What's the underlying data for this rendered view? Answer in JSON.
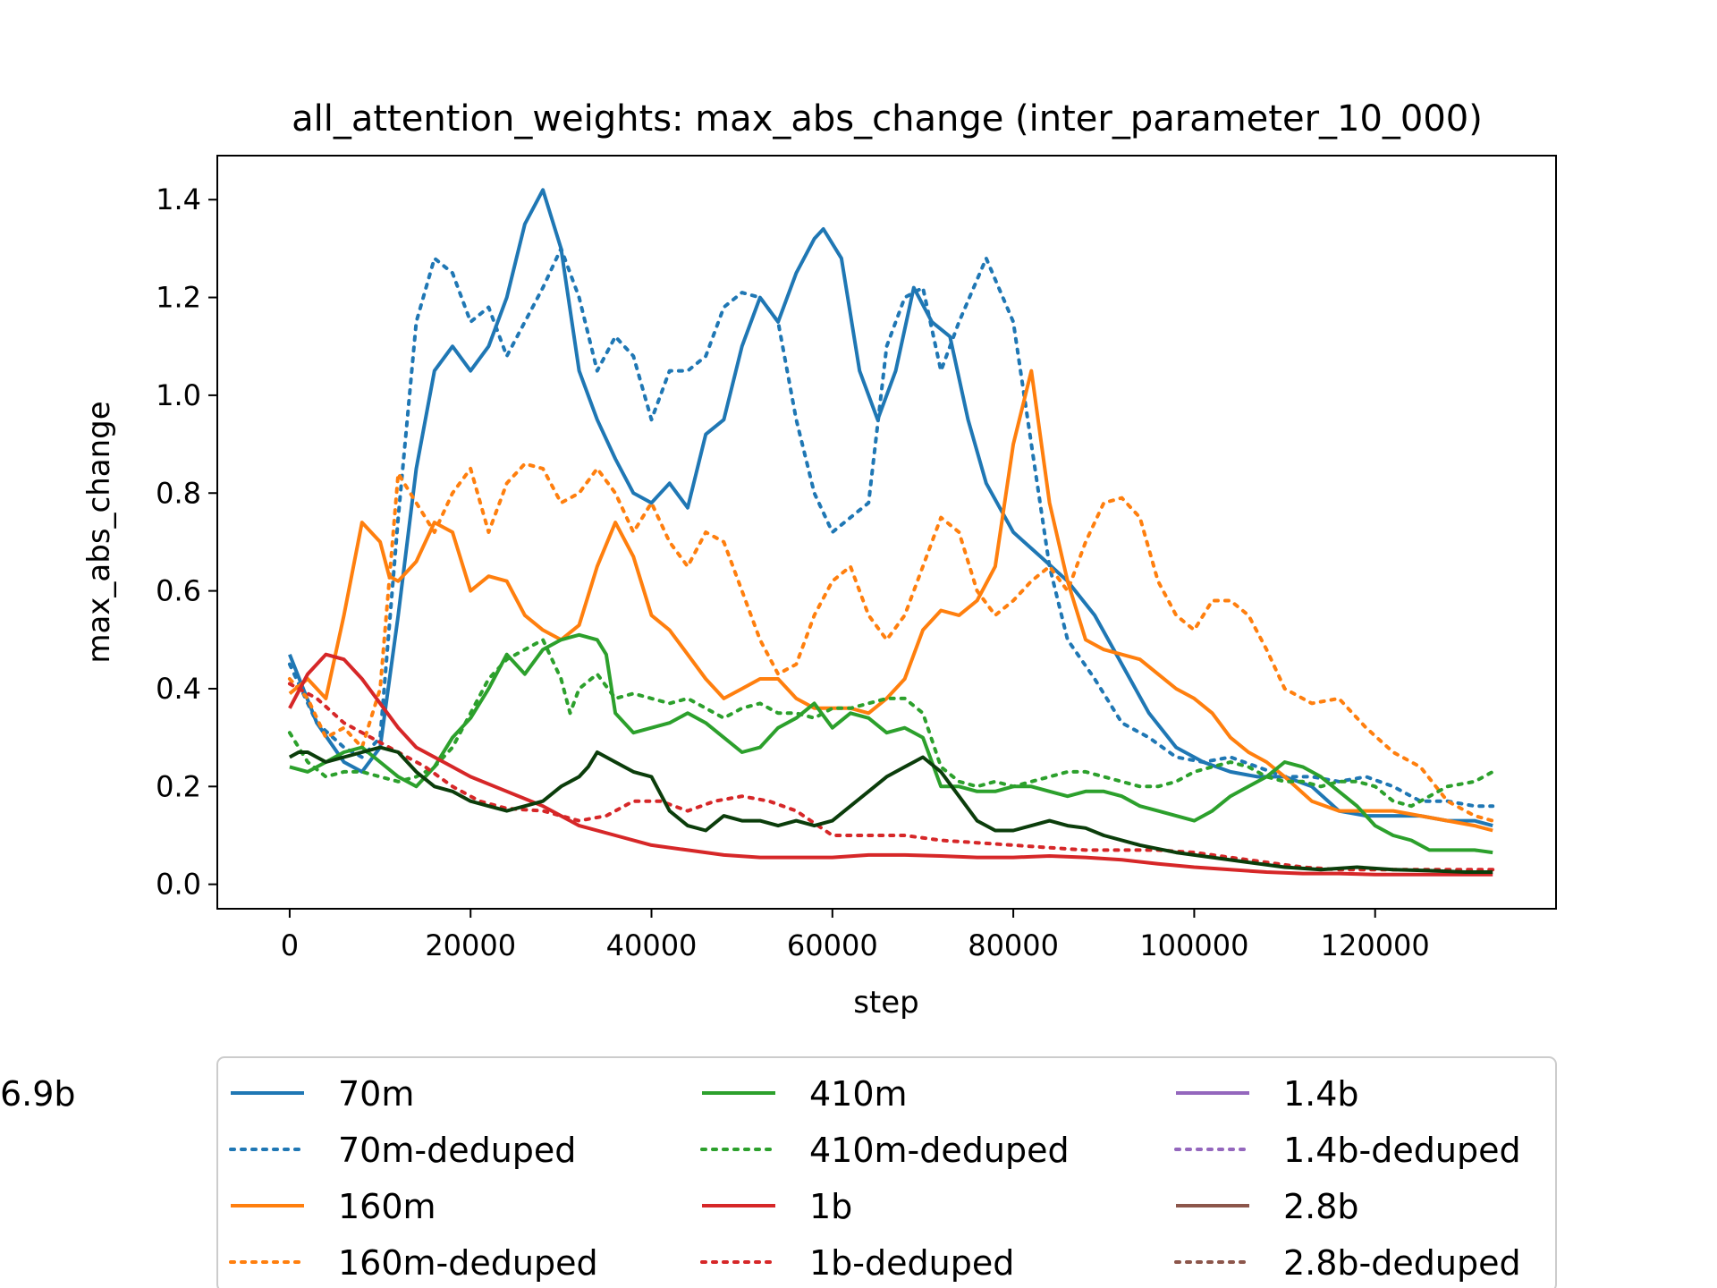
{
  "chart_data": {
    "type": "line",
    "title": "all_attention_weights: max_abs_change (inter_parameter_10_000)",
    "xlabel": "step",
    "ylabel": "max_abs_change",
    "xlim": [
      -8000,
      140000
    ],
    "ylim": [
      -0.05,
      1.49
    ],
    "xticks": [
      0,
      20000,
      40000,
      60000,
      80000,
      100000,
      120000
    ],
    "yticks": [
      0.0,
      0.2,
      0.4,
      0.6,
      0.8,
      1.0,
      1.2,
      1.4
    ],
    "xtick_labels": [
      "0",
      "20000",
      "40000",
      "60000",
      "80000",
      "100000",
      "120000"
    ],
    "ytick_labels": [
      "0.0",
      "0.2",
      "0.4",
      "0.6",
      "0.8",
      "1.0",
      "1.2",
      "1.4"
    ],
    "grid": false,
    "legend_position": "below",
    "series": [
      {
        "name": "70m",
        "color": "#1f77b4",
        "style": "solid",
        "x": [
          0,
          3000,
          6000,
          8000,
          10000,
          12000,
          14000,
          16000,
          18000,
          20000,
          22000,
          24000,
          26000,
          28000,
          30000,
          32000,
          34000,
          36000,
          38000,
          40000,
          42000,
          44000,
          46000,
          48000,
          50000,
          52000,
          54000,
          56000,
          58000,
          59000,
          61000,
          63000,
          65000,
          67000,
          69000,
          71000,
          73000,
          75000,
          77000,
          80000,
          83000,
          86000,
          89000,
          92000,
          95000,
          98000,
          101000,
          104000,
          107000,
          110000,
          113000,
          116000,
          119000,
          122000,
          125000,
          128000,
          131000,
          133000
        ],
        "y": [
          0.47,
          0.33,
          0.25,
          0.23,
          0.28,
          0.55,
          0.85,
          1.05,
          1.1,
          1.05,
          1.1,
          1.2,
          1.35,
          1.42,
          1.3,
          1.05,
          0.95,
          0.87,
          0.8,
          0.78,
          0.82,
          0.77,
          0.92,
          0.95,
          1.1,
          1.2,
          1.15,
          1.25,
          1.32,
          1.34,
          1.28,
          1.05,
          0.95,
          1.05,
          1.22,
          1.15,
          1.12,
          0.95,
          0.82,
          0.72,
          0.67,
          0.62,
          0.55,
          0.45,
          0.35,
          0.28,
          0.25,
          0.23,
          0.22,
          0.22,
          0.2,
          0.15,
          0.14,
          0.14,
          0.14,
          0.13,
          0.13,
          0.12
        ]
      },
      {
        "name": "70m-deduped",
        "color": "#1f77b4",
        "style": "dotted",
        "x": [
          0,
          3000,
          6000,
          8000,
          10000,
          12000,
          14000,
          16000,
          18000,
          20000,
          22000,
          24000,
          26000,
          28000,
          30000,
          32000,
          34000,
          36000,
          38000,
          40000,
          42000,
          44000,
          46000,
          48000,
          50000,
          52000,
          54000,
          56000,
          58000,
          60000,
          62000,
          64000,
          66000,
          68000,
          70000,
          72000,
          74000,
          77000,
          80000,
          82000,
          84000,
          86000,
          89000,
          92000,
          95000,
          98000,
          101000,
          104000,
          107000,
          110000,
          113000,
          116000,
          119000,
          122000,
          125000,
          128000,
          131000,
          133000
        ],
        "y": [
          0.45,
          0.33,
          0.28,
          0.26,
          0.3,
          0.75,
          1.15,
          1.28,
          1.25,
          1.15,
          1.18,
          1.08,
          1.15,
          1.22,
          1.3,
          1.2,
          1.05,
          1.12,
          1.08,
          0.95,
          1.05,
          1.05,
          1.08,
          1.18,
          1.21,
          1.2,
          1.15,
          0.95,
          0.8,
          0.72,
          0.75,
          0.78,
          1.1,
          1.2,
          1.22,
          1.05,
          1.15,
          1.28,
          1.15,
          0.9,
          0.65,
          0.5,
          0.42,
          0.33,
          0.3,
          0.26,
          0.25,
          0.26,
          0.24,
          0.22,
          0.22,
          0.21,
          0.22,
          0.2,
          0.17,
          0.17,
          0.16,
          0.16
        ]
      },
      {
        "name": "160m",
        "color": "#ff7f0e",
        "style": "solid",
        "x": [
          0,
          2000,
          4000,
          6000,
          8000,
          10000,
          11000,
          12000,
          14000,
          16000,
          18000,
          20000,
          22000,
          24000,
          26000,
          28000,
          30000,
          32000,
          34000,
          36000,
          38000,
          40000,
          42000,
          44000,
          46000,
          48000,
          50000,
          52000,
          54000,
          56000,
          58000,
          60000,
          62000,
          64000,
          66000,
          68000,
          70000,
          72000,
          74000,
          76000,
          78000,
          80000,
          82000,
          84000,
          86000,
          88000,
          90000,
          92000,
          94000,
          96000,
          98000,
          100000,
          102000,
          104000,
          106000,
          108000,
          110000,
          113000,
          116000,
          119000,
          122000,
          125000,
          128000,
          131000,
          133000
        ],
        "y": [
          0.39,
          0.42,
          0.38,
          0.55,
          0.74,
          0.7,
          0.63,
          0.62,
          0.66,
          0.74,
          0.72,
          0.6,
          0.63,
          0.62,
          0.55,
          0.52,
          0.5,
          0.53,
          0.65,
          0.74,
          0.67,
          0.55,
          0.52,
          0.47,
          0.42,
          0.38,
          0.4,
          0.42,
          0.42,
          0.38,
          0.36,
          0.36,
          0.36,
          0.35,
          0.38,
          0.42,
          0.52,
          0.56,
          0.55,
          0.58,
          0.65,
          0.9,
          1.05,
          0.78,
          0.62,
          0.5,
          0.48,
          0.47,
          0.46,
          0.43,
          0.4,
          0.38,
          0.35,
          0.3,
          0.27,
          0.25,
          0.22,
          0.17,
          0.15,
          0.15,
          0.15,
          0.14,
          0.13,
          0.12,
          0.11
        ]
      },
      {
        "name": "160m-deduped",
        "color": "#ff7f0e",
        "style": "dotted",
        "x": [
          0,
          2000,
          4000,
          6000,
          8000,
          10000,
          12000,
          14000,
          16000,
          18000,
          20000,
          22000,
          24000,
          26000,
          28000,
          30000,
          32000,
          34000,
          36000,
          38000,
          40000,
          42000,
          44000,
          46000,
          48000,
          50000,
          52000,
          54000,
          56000,
          58000,
          60000,
          62000,
          64000,
          66000,
          68000,
          70000,
          72000,
          74000,
          76000,
          78000,
          80000,
          82000,
          84000,
          86000,
          88000,
          90000,
          92000,
          94000,
          96000,
          98000,
          100000,
          102000,
          104000,
          106000,
          108000,
          110000,
          113000,
          116000,
          119000,
          122000,
          125000,
          128000,
          131000,
          133000
        ],
        "y": [
          0.42,
          0.38,
          0.3,
          0.32,
          0.28,
          0.4,
          0.84,
          0.78,
          0.72,
          0.8,
          0.85,
          0.72,
          0.82,
          0.86,
          0.85,
          0.78,
          0.8,
          0.85,
          0.8,
          0.72,
          0.78,
          0.7,
          0.65,
          0.72,
          0.7,
          0.6,
          0.5,
          0.43,
          0.45,
          0.55,
          0.62,
          0.65,
          0.55,
          0.5,
          0.55,
          0.65,
          0.75,
          0.72,
          0.6,
          0.55,
          0.58,
          0.62,
          0.65,
          0.6,
          0.7,
          0.78,
          0.79,
          0.75,
          0.62,
          0.55,
          0.52,
          0.58,
          0.58,
          0.55,
          0.48,
          0.4,
          0.37,
          0.38,
          0.32,
          0.27,
          0.24,
          0.17,
          0.14,
          0.13
        ]
      },
      {
        "name": "410m",
        "color": "#2ca02c",
        "style": "solid",
        "x": [
          0,
          2000,
          4000,
          6000,
          8000,
          10000,
          12000,
          14000,
          16000,
          18000,
          20000,
          22000,
          24000,
          26000,
          28000,
          30000,
          32000,
          34000,
          35000,
          36000,
          38000,
          40000,
          42000,
          44000,
          46000,
          48000,
          50000,
          52000,
          54000,
          56000,
          58000,
          60000,
          62000,
          64000,
          66000,
          68000,
          70000,
          72000,
          74000,
          76000,
          78000,
          80000,
          82000,
          84000,
          86000,
          88000,
          90000,
          92000,
          94000,
          96000,
          98000,
          100000,
          102000,
          104000,
          106000,
          108000,
          110000,
          112000,
          114000,
          116000,
          118000,
          120000,
          122000,
          124000,
          126000,
          128000,
          131000,
          133000
        ],
        "y": [
          0.24,
          0.23,
          0.25,
          0.27,
          0.28,
          0.25,
          0.22,
          0.2,
          0.24,
          0.3,
          0.34,
          0.4,
          0.47,
          0.43,
          0.48,
          0.5,
          0.51,
          0.5,
          0.47,
          0.35,
          0.31,
          0.32,
          0.33,
          0.35,
          0.33,
          0.3,
          0.27,
          0.28,
          0.32,
          0.34,
          0.37,
          0.32,
          0.35,
          0.34,
          0.31,
          0.32,
          0.3,
          0.2,
          0.2,
          0.19,
          0.19,
          0.2,
          0.2,
          0.19,
          0.18,
          0.19,
          0.19,
          0.18,
          0.16,
          0.15,
          0.14,
          0.13,
          0.15,
          0.18,
          0.2,
          0.22,
          0.25,
          0.24,
          0.22,
          0.19,
          0.16,
          0.12,
          0.1,
          0.09,
          0.07,
          0.07,
          0.07,
          0.065
        ]
      },
      {
        "name": "410m-deduped",
        "color": "#2ca02c",
        "style": "dotted",
        "x": [
          0,
          2000,
          4000,
          6000,
          8000,
          10000,
          12000,
          14000,
          16000,
          18000,
          20000,
          22000,
          24000,
          26000,
          28000,
          30000,
          31000,
          32000,
          34000,
          36000,
          38000,
          40000,
          42000,
          44000,
          46000,
          48000,
          50000,
          52000,
          54000,
          56000,
          58000,
          60000,
          62000,
          64000,
          66000,
          68000,
          70000,
          72000,
          74000,
          76000,
          78000,
          80000,
          82000,
          84000,
          86000,
          88000,
          90000,
          92000,
          94000,
          96000,
          98000,
          100000,
          102000,
          104000,
          106000,
          108000,
          110000,
          112000,
          114000,
          116000,
          118000,
          120000,
          122000,
          124000,
          126000,
          128000,
          131000,
          133000
        ],
        "y": [
          0.31,
          0.25,
          0.22,
          0.23,
          0.23,
          0.22,
          0.21,
          0.22,
          0.24,
          0.28,
          0.35,
          0.42,
          0.46,
          0.48,
          0.5,
          0.42,
          0.35,
          0.4,
          0.43,
          0.38,
          0.39,
          0.38,
          0.37,
          0.38,
          0.36,
          0.34,
          0.36,
          0.37,
          0.35,
          0.35,
          0.34,
          0.36,
          0.36,
          0.37,
          0.38,
          0.38,
          0.35,
          0.24,
          0.21,
          0.2,
          0.21,
          0.2,
          0.21,
          0.22,
          0.23,
          0.23,
          0.22,
          0.21,
          0.2,
          0.2,
          0.21,
          0.23,
          0.24,
          0.25,
          0.24,
          0.22,
          0.21,
          0.21,
          0.2,
          0.21,
          0.21,
          0.2,
          0.17,
          0.16,
          0.18,
          0.2,
          0.21,
          0.23
        ]
      },
      {
        "name": "1b",
        "color": "#d62728",
        "style": "solid",
        "x": [
          0,
          2000,
          4000,
          6000,
          8000,
          10000,
          12000,
          14000,
          16000,
          18000,
          20000,
          24000,
          28000,
          32000,
          36000,
          40000,
          44000,
          48000,
          52000,
          56000,
          60000,
          64000,
          68000,
          72000,
          76000,
          80000,
          84000,
          88000,
          92000,
          96000,
          100000,
          104000,
          108000,
          112000,
          116000,
          120000,
          124000,
          128000,
          133000
        ],
        "y": [
          0.36,
          0.43,
          0.47,
          0.46,
          0.42,
          0.37,
          0.32,
          0.28,
          0.26,
          0.24,
          0.22,
          0.19,
          0.16,
          0.12,
          0.1,
          0.08,
          0.07,
          0.06,
          0.055,
          0.055,
          0.055,
          0.06,
          0.06,
          0.058,
          0.055,
          0.055,
          0.058,
          0.055,
          0.05,
          0.042,
          0.035,
          0.03,
          0.025,
          0.022,
          0.022,
          0.02,
          0.02,
          0.02,
          0.02
        ]
      },
      {
        "name": "1b-deduped",
        "color": "#d62728",
        "style": "dotted",
        "x": [
          0,
          3000,
          6000,
          9000,
          12000,
          15000,
          18000,
          21000,
          24000,
          28000,
          32000,
          35000,
          38000,
          41000,
          44000,
          47000,
          50000,
          53000,
          56000,
          60000,
          64000,
          68000,
          72000,
          76000,
          80000,
          84000,
          88000,
          92000,
          96000,
          100000,
          104000,
          108000,
          112000,
          116000,
          120000,
          124000,
          128000,
          133000
        ],
        "y": [
          0.41,
          0.38,
          0.33,
          0.3,
          0.27,
          0.24,
          0.2,
          0.17,
          0.155,
          0.15,
          0.13,
          0.14,
          0.17,
          0.17,
          0.15,
          0.17,
          0.18,
          0.17,
          0.15,
          0.1,
          0.1,
          0.1,
          0.09,
          0.085,
          0.08,
          0.075,
          0.07,
          0.07,
          0.07,
          0.065,
          0.055,
          0.045,
          0.035,
          0.03,
          0.03,
          0.03,
          0.03,
          0.03
        ]
      },
      {
        "name": "1.4b",
        "color": "#9467bd",
        "style": "solid",
        "x": [],
        "y": []
      },
      {
        "name": "1.4b-deduped",
        "color": "#9467bd",
        "style": "dotted",
        "x": [],
        "y": []
      },
      {
        "name": "2.8b",
        "color": "#8c564b",
        "style": "solid",
        "x": [],
        "y": []
      },
      {
        "name": "2.8b-deduped",
        "color": "#8c564b",
        "style": "dotted",
        "x": [],
        "y": []
      },
      {
        "name": "6.9b",
        "color": "#0b3d0b",
        "style": "solid",
        "x": [
          0,
          1000,
          2000,
          4000,
          6000,
          8000,
          10000,
          12000,
          14000,
          16000,
          18000,
          20000,
          22000,
          24000,
          26000,
          28000,
          30000,
          32000,
          33000,
          34000,
          36000,
          38000,
          40000,
          42000,
          44000,
          46000,
          48000,
          50000,
          52000,
          54000,
          56000,
          58000,
          60000,
          62000,
          64000,
          66000,
          68000,
          70000,
          72000,
          74000,
          76000,
          78000,
          80000,
          82000,
          84000,
          86000,
          88000,
          90000,
          94000,
          98000,
          102000,
          106000,
          110000,
          114000,
          118000,
          122000,
          126000,
          130000,
          133000
        ],
        "y": [
          0.26,
          0.27,
          0.27,
          0.25,
          0.26,
          0.27,
          0.28,
          0.27,
          0.23,
          0.2,
          0.19,
          0.17,
          0.16,
          0.15,
          0.16,
          0.17,
          0.2,
          0.22,
          0.24,
          0.27,
          0.25,
          0.23,
          0.22,
          0.15,
          0.12,
          0.11,
          0.14,
          0.13,
          0.13,
          0.12,
          0.13,
          0.12,
          0.13,
          0.16,
          0.19,
          0.22,
          0.24,
          0.26,
          0.23,
          0.18,
          0.13,
          0.11,
          0.11,
          0.12,
          0.13,
          0.12,
          0.115,
          0.1,
          0.08,
          0.065,
          0.055,
          0.045,
          0.035,
          0.03,
          0.035,
          0.03,
          0.028,
          0.025,
          0.025
        ]
      }
    ]
  }
}
